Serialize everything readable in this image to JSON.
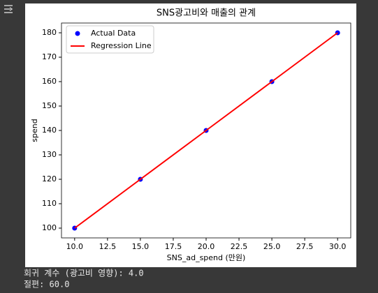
{
  "chart_data": {
    "type": "scatter",
    "title": "SNS광고비와 매출의 관계",
    "x_label": "SNS_ad_spend (만원)",
    "y_label": "spend",
    "x": [
      10,
      15,
      20,
      25,
      30
    ],
    "series": [
      {
        "name": "Actual Data",
        "type": "scatter",
        "color": "#0000ff",
        "values": [
          100,
          120,
          140,
          160,
          180
        ]
      },
      {
        "name": "Regression Line",
        "type": "line",
        "color": "#ff0000",
        "values": [
          100,
          120,
          140,
          160,
          180
        ]
      }
    ],
    "xlim": [
      9,
      31
    ],
    "xticks": [
      {
        "value": 10,
        "label": "10.0"
      },
      12.5,
      {
        "value": 15,
        "label": "15.0"
      },
      17.5,
      {
        "value": 20,
        "label": "20.0"
      },
      22.5,
      {
        "value": 25,
        "label": "25.0"
      },
      27.5,
      {
        "value": 30,
        "label": "30.0"
      }
    ],
    "ylim": [
      96,
      184
    ],
    "yticks": [
      100,
      110,
      120,
      130,
      140,
      150,
      160,
      170,
      180
    ],
    "grid": false,
    "legend": "upper left"
  },
  "output": {
    "lines": [
      "회귀 계수 (광고비 영향): 4.0",
      "절편: 60.0"
    ]
  }
}
